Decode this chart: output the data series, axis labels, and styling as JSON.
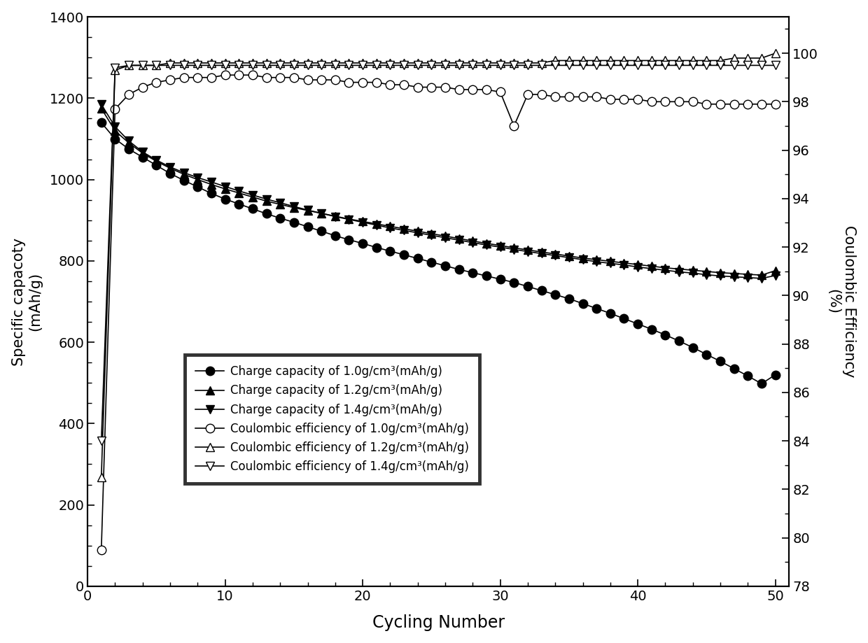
{
  "title": "",
  "xlabel": "Cycling Number",
  "ylabel_left": "Specific capacoty\n(mAh/g)",
  "ylabel_right": "Coulombic Efficiency\n(%)",
  "xlim": [
    0,
    51
  ],
  "ylim_left": [
    0,
    1400
  ],
  "ylim_right": [
    78,
    101.5
  ],
  "yticks_left": [
    0,
    200,
    400,
    600,
    800,
    1000,
    1200,
    1400
  ],
  "yticks_right": [
    78,
    80,
    82,
    84,
    86,
    88,
    90,
    92,
    94,
    96,
    98,
    100
  ],
  "xticks": [
    0,
    10,
    20,
    30,
    40,
    50
  ],
  "charge_10_x": [
    1,
    2,
    3,
    4,
    5,
    6,
    7,
    8,
    9,
    10,
    11,
    12,
    13,
    14,
    15,
    16,
    17,
    18,
    19,
    20,
    21,
    22,
    23,
    24,
    25,
    26,
    27,
    28,
    29,
    30,
    31,
    32,
    33,
    34,
    35,
    36,
    37,
    38,
    39,
    40,
    41,
    42,
    43,
    44,
    45,
    46,
    47,
    48,
    49,
    50
  ],
  "charge_10_y": [
    1140,
    1100,
    1075,
    1055,
    1035,
    1015,
    998,
    982,
    966,
    952,
    940,
    928,
    916,
    905,
    895,
    884,
    873,
    862,
    852,
    843,
    833,
    824,
    815,
    806,
    797,
    788,
    779,
    771,
    763,
    755,
    747,
    737,
    727,
    717,
    707,
    695,
    683,
    671,
    658,
    645,
    632,
    618,
    603,
    587,
    570,
    553,
    535,
    517,
    498,
    520
  ],
  "charge_12_x": [
    1,
    2,
    3,
    4,
    5,
    6,
    7,
    8,
    9,
    10,
    11,
    12,
    13,
    14,
    15,
    16,
    17,
    18,
    19,
    20,
    21,
    22,
    23,
    24,
    25,
    26,
    27,
    28,
    29,
    30,
    31,
    32,
    33,
    34,
    35,
    36,
    37,
    38,
    39,
    40,
    41,
    42,
    43,
    44,
    45,
    46,
    47,
    48,
    49,
    50
  ],
  "charge_12_y": [
    1175,
    1120,
    1090,
    1065,
    1045,
    1028,
    1013,
    1000,
    988,
    977,
    967,
    957,
    947,
    939,
    931,
    924,
    917,
    910,
    903,
    897,
    891,
    885,
    879,
    873,
    867,
    861,
    855,
    849,
    843,
    838,
    832,
    827,
    822,
    817,
    812,
    807,
    803,
    799,
    795,
    791,
    787,
    783,
    780,
    777,
    774,
    771,
    769,
    767,
    765,
    776
  ],
  "charge_14_x": [
    1,
    2,
    3,
    4,
    5,
    6,
    7,
    8,
    9,
    10,
    11,
    12,
    13,
    14,
    15,
    16,
    17,
    18,
    19,
    20,
    21,
    22,
    23,
    24,
    25,
    26,
    27,
    28,
    29,
    30,
    31,
    32,
    33,
    34,
    35,
    36,
    37,
    38,
    39,
    40,
    41,
    42,
    43,
    44,
    45,
    46,
    47,
    48,
    49,
    50
  ],
  "charge_14_y": [
    1185,
    1130,
    1095,
    1068,
    1048,
    1031,
    1017,
    1005,
    994,
    983,
    972,
    962,
    952,
    943,
    934,
    925,
    917,
    909,
    902,
    895,
    888,
    881,
    875,
    869,
    863,
    857,
    851,
    845,
    839,
    834,
    828,
    823,
    818,
    813,
    808,
    803,
    798,
    794,
    790,
    785,
    781,
    777,
    773,
    770,
    766,
    763,
    761,
    759,
    757,
    764
  ],
  "ce_10_x": [
    1,
    2,
    3,
    4,
    5,
    6,
    7,
    8,
    9,
    10,
    11,
    12,
    13,
    14,
    15,
    16,
    17,
    18,
    19,
    20,
    21,
    22,
    23,
    24,
    25,
    26,
    27,
    28,
    29,
    30,
    31,
    32,
    33,
    34,
    35,
    36,
    37,
    38,
    39,
    40,
    41,
    42,
    43,
    44,
    45,
    46,
    47,
    48,
    49,
    50
  ],
  "ce_10_y": [
    79.5,
    97.7,
    98.3,
    98.6,
    98.8,
    98.9,
    99.0,
    99.0,
    99.0,
    99.1,
    99.1,
    99.1,
    99.0,
    99.0,
    99.0,
    98.9,
    98.9,
    98.9,
    98.8,
    98.8,
    98.8,
    98.7,
    98.7,
    98.6,
    98.6,
    98.6,
    98.5,
    98.5,
    98.5,
    98.4,
    97.0,
    98.3,
    98.3,
    98.2,
    98.2,
    98.2,
    98.2,
    98.1,
    98.1,
    98.1,
    98.0,
    98.0,
    98.0,
    98.0,
    97.9,
    97.9,
    97.9,
    97.9,
    97.9,
    97.9
  ],
  "ce_12_x": [
    1,
    2,
    3,
    4,
    5,
    6,
    7,
    8,
    9,
    10,
    11,
    12,
    13,
    14,
    15,
    16,
    17,
    18,
    19,
    20,
    21,
    22,
    23,
    24,
    25,
    26,
    27,
    28,
    29,
    30,
    31,
    32,
    33,
    34,
    35,
    36,
    37,
    38,
    39,
    40,
    41,
    42,
    43,
    44,
    45,
    46,
    47,
    48,
    49,
    50
  ],
  "ce_12_y": [
    82.5,
    99.3,
    99.5,
    99.5,
    99.5,
    99.6,
    99.6,
    99.6,
    99.6,
    99.6,
    99.6,
    99.6,
    99.6,
    99.6,
    99.6,
    99.6,
    99.6,
    99.6,
    99.6,
    99.6,
    99.6,
    99.6,
    99.6,
    99.6,
    99.6,
    99.6,
    99.6,
    99.6,
    99.6,
    99.6,
    99.6,
    99.6,
    99.6,
    99.7,
    99.7,
    99.7,
    99.7,
    99.7,
    99.7,
    99.7,
    99.7,
    99.7,
    99.7,
    99.7,
    99.7,
    99.7,
    99.8,
    99.8,
    99.8,
    100.0
  ],
  "ce_14_x": [
    1,
    2,
    3,
    4,
    5,
    6,
    7,
    8,
    9,
    10,
    11,
    12,
    13,
    14,
    15,
    16,
    17,
    18,
    19,
    20,
    21,
    22,
    23,
    24,
    25,
    26,
    27,
    28,
    29,
    30,
    31,
    32,
    33,
    34,
    35,
    36,
    37,
    38,
    39,
    40,
    41,
    42,
    43,
    44,
    45,
    46,
    47,
    48,
    49,
    50
  ],
  "ce_14_y": [
    84.0,
    99.4,
    99.5,
    99.5,
    99.5,
    99.5,
    99.5,
    99.5,
    99.5,
    99.5,
    99.5,
    99.5,
    99.5,
    99.5,
    99.5,
    99.5,
    99.5,
    99.5,
    99.5,
    99.5,
    99.5,
    99.5,
    99.5,
    99.5,
    99.5,
    99.5,
    99.5,
    99.5,
    99.5,
    99.5,
    99.5,
    99.5,
    99.5,
    99.5,
    99.5,
    99.5,
    99.5,
    99.5,
    99.5,
    99.5,
    99.5,
    99.5,
    99.5,
    99.5,
    99.5,
    99.5,
    99.5,
    99.5,
    99.5,
    99.5
  ],
  "legend_labels": [
    "Charge capacity of 1.0g/cm³(mAh/g)",
    "Charge capacity of 1.2g/cm³(mAh/g)",
    "Charge capacity of 1.4g/cm³(mAh/g)",
    "Coulombic efficiency of 1.0g/cm³(mAh/g)",
    "Coulombic efficiency of 1.2g/cm³(mAh/g)",
    "Coulombic efficiency of 1.4g/cm³(mAh/g)"
  ]
}
